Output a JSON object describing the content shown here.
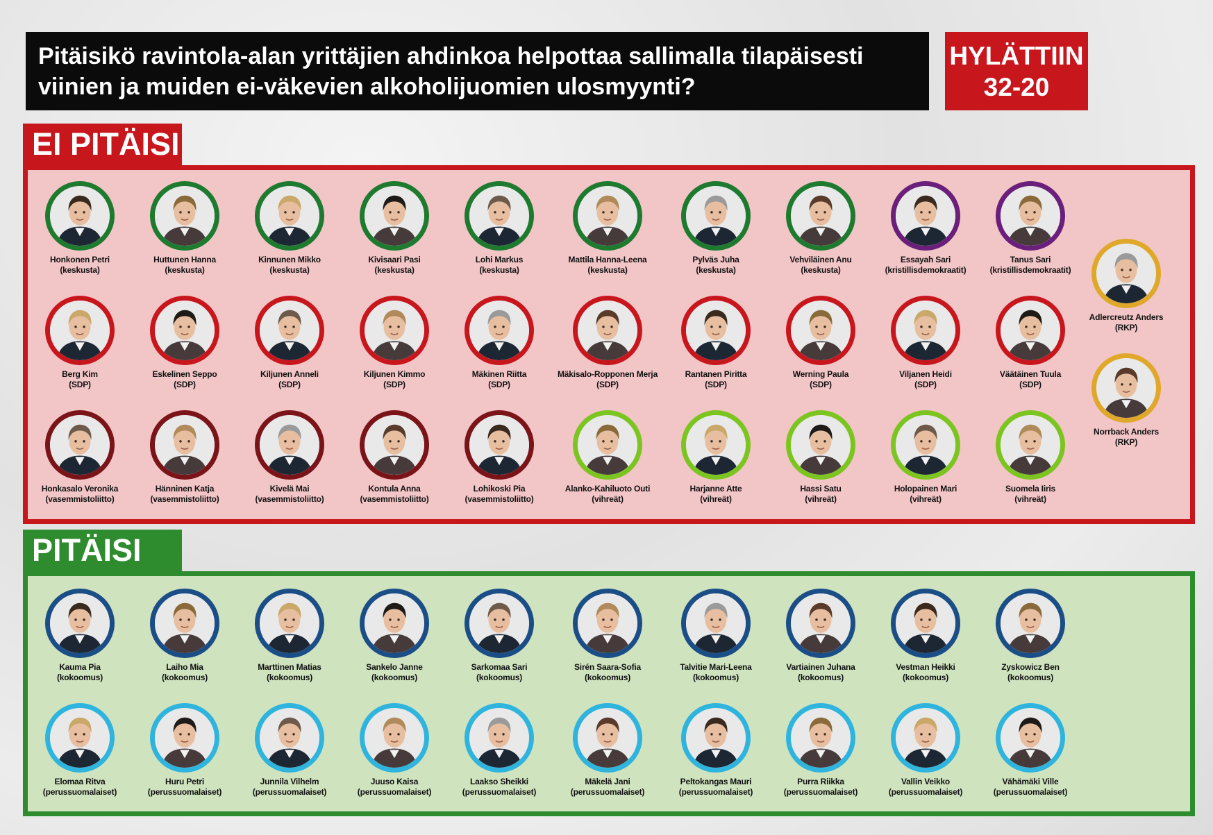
{
  "question": {
    "line1": "Pitäisikö ravintola-alan yrittäjien ahdinkoa helpottaa sallimalla tilapäisesti",
    "line2": "viinien ja muiden ei-väkevien alkoholijuomien ulosmyynti?"
  },
  "result": {
    "label": "HYLÄTTIIN",
    "score": "32-20"
  },
  "party_colors": {
    "keskusta": "#1e7a2e",
    "kristillisdemokraatit": "#6a1f7a",
    "RKP": "#e0a82a",
    "SDP": "#c8161d",
    "vasemmistoliitto": "#7a1418",
    "vihreät": "#7cc520",
    "kokoomus": "#1b4e86",
    "perussuomalaiset": "#2fb4dd"
  },
  "ei_pitaisi": {
    "label": "EI PITÄISI",
    "rows": [
      [
        {
          "name": "Honkonen Petri",
          "party": "keskusta"
        },
        {
          "name": "Huttunen Hanna",
          "party": "keskusta"
        },
        {
          "name": "Kinnunen Mikko",
          "party": "keskusta"
        },
        {
          "name": "Kivisaari Pasi",
          "party": "keskusta"
        },
        {
          "name": "Lohi Markus",
          "party": "keskusta"
        },
        {
          "name": "Mattila Hanna-Leena",
          "party": "keskusta"
        },
        {
          "name": "Pylväs Juha",
          "party": "keskusta"
        },
        {
          "name": "Vehviläinen Anu",
          "party": "keskusta"
        },
        {
          "name": "Essayah Sari",
          "party": "kristillisdemokraatit"
        },
        {
          "name": "Tanus Sari",
          "party": "kristillisdemokraatit"
        }
      ],
      [
        {
          "name": "Berg Kim",
          "party": "SDP"
        },
        {
          "name": "Eskelinen Seppo",
          "party": "SDP"
        },
        {
          "name": "Kiljunen Anneli",
          "party": "SDP"
        },
        {
          "name": "Kiljunen Kimmo",
          "party": "SDP"
        },
        {
          "name": "Mäkinen Riitta",
          "party": "SDP"
        },
        {
          "name": "Mäkisalo-Ropponen Merja",
          "party": "SDP"
        },
        {
          "name": "Rantanen Piritta",
          "party": "SDP"
        },
        {
          "name": "Werning Paula",
          "party": "SDP"
        },
        {
          "name": "Viljanen Heidi",
          "party": "SDP"
        },
        {
          "name": "Väätäinen Tuula",
          "party": "SDP"
        }
      ],
      [
        {
          "name": "Honkasalo Veronika",
          "party": "vasemmistoliitto"
        },
        {
          "name": "Hänninen Katja",
          "party": "vasemmistoliitto"
        },
        {
          "name": "Kivelä Mai",
          "party": "vasemmistoliitto"
        },
        {
          "name": "Kontula Anna",
          "party": "vasemmistoliitto"
        },
        {
          "name": "Lohikoski Pia",
          "party": "vasemmistoliitto"
        },
        {
          "name": "Alanko-Kahiluoto Outi",
          "party": "vihreät"
        },
        {
          "name": "Harjanne Atte",
          "party": "vihreät"
        },
        {
          "name": "Hassi Satu",
          "party": "vihreät"
        },
        {
          "name": "Holopainen Mari",
          "party": "vihreät"
        },
        {
          "name": "Suomela Iiris",
          "party": "vihreät"
        }
      ]
    ],
    "side": [
      {
        "name": "Adlercreutz Anders",
        "party": "RKP"
      },
      {
        "name": "Norrback Anders",
        "party": "RKP"
      }
    ]
  },
  "pitaisi": {
    "label": "PITÄISI",
    "rows": [
      [
        {
          "name": "Kauma Pia",
          "party": "kokoomus"
        },
        {
          "name": "Laiho Mia",
          "party": "kokoomus"
        },
        {
          "name": "Marttinen Matias",
          "party": "kokoomus"
        },
        {
          "name": "Sankelo Janne",
          "party": "kokoomus"
        },
        {
          "name": "Sarkomaa Sari",
          "party": "kokoomus"
        },
        {
          "name": "Sirén Saara-Sofia",
          "party": "kokoomus"
        },
        {
          "name": "Talvitie Mari-Leena",
          "party": "kokoomus"
        },
        {
          "name": "Vartiainen Juhana",
          "party": "kokoomus"
        },
        {
          "name": "Vestman Heikki",
          "party": "kokoomus"
        },
        {
          "name": "Zyskowicz Ben",
          "party": "kokoomus"
        }
      ],
      [
        {
          "name": "Elomaa Ritva",
          "party": "perussuomalaiset"
        },
        {
          "name": "Huru Petri",
          "party": "perussuomalaiset"
        },
        {
          "name": "Junnila Vilhelm",
          "party": "perussuomalaiset"
        },
        {
          "name": "Juuso Kaisa",
          "party": "perussuomalaiset"
        },
        {
          "name": "Laakso Sheikki",
          "party": "perussuomalaiset"
        },
        {
          "name": "Mäkelä Jani",
          "party": "perussuomalaiset"
        },
        {
          "name": "Peltokangas Mauri",
          "party": "perussuomalaiset"
        },
        {
          "name": "Purra Riikka",
          "party": "perussuomalaiset"
        },
        {
          "name": "Vallin Veikko",
          "party": "perussuomalaiset"
        },
        {
          "name": "Vähämäki Ville",
          "party": "perussuomalaiset"
        }
      ]
    ]
  }
}
